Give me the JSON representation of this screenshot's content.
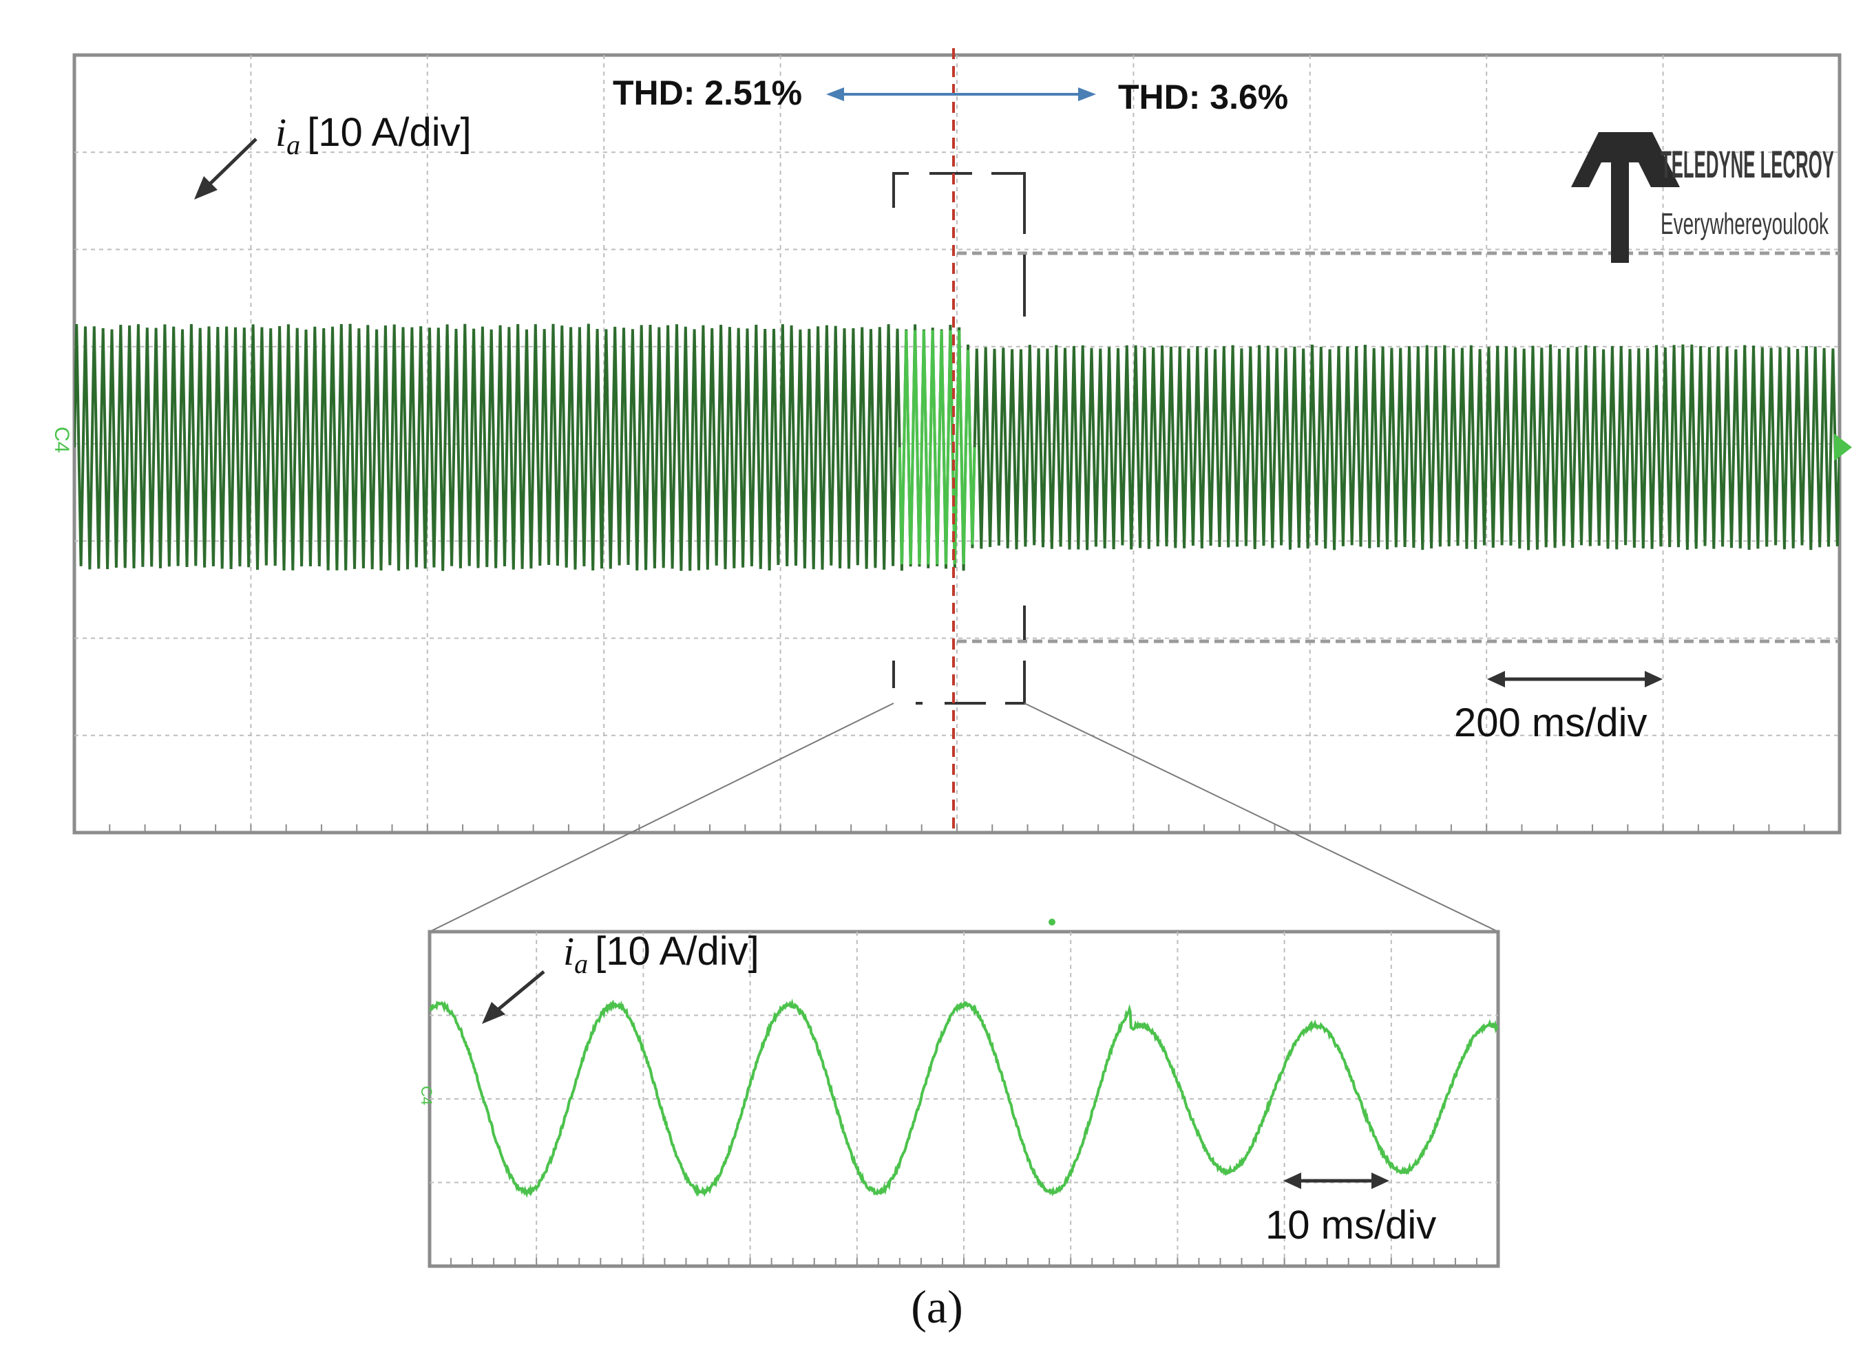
{
  "colors": {
    "trace_dark": "#2d6b2d",
    "trace_light": "#4cc24c",
    "marker_red": "#c0392b",
    "arrow_blue": "#4a7fb5",
    "grid": "#bdbdbd"
  },
  "top_panel": {
    "thd_left": "THD: 2.51%",
    "thd_right": "THD: 3.6%",
    "signal_var": "i",
    "signal_sub": "a",
    "signal_scale": "[10 A/div]",
    "time_scale": "200 ms/div",
    "channel_marker": "C4",
    "logo": {
      "brand": "TELEDYNE LECROY",
      "slogan": "Everywhereyoulook"
    },
    "envelope": {
      "before_amplitude_div": 1.07,
      "after_amplitude_div": 0.89,
      "step_fraction": 0.505,
      "cycles_shown": 200
    }
  },
  "zoom_panel": {
    "signal_var": "i",
    "signal_sub": "a",
    "signal_scale": "[10 A/div]",
    "time_scale": "10 ms/div",
    "channel_marker": "C4",
    "peaks_div": [
      1.0,
      1.0,
      1.0,
      1.0,
      0.78,
      0.78
    ],
    "cycles_shown": 6.1
  },
  "caption": "(a)"
}
